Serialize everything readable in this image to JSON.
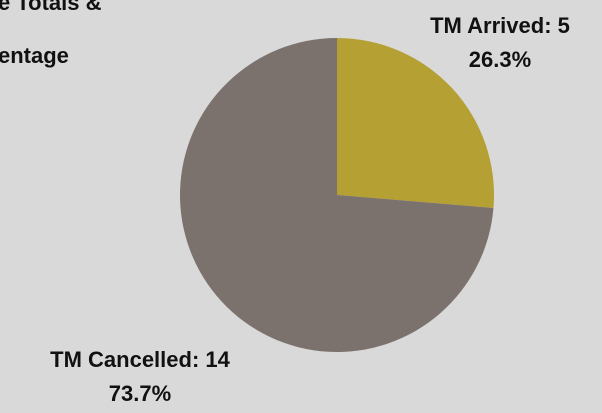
{
  "chart_data": {
    "type": "pie",
    "title_lines": [
      "e Totals &",
      "entage"
    ],
    "value_labels": [
      "TM Arrived: 5",
      "TM Cancelled: 14"
    ],
    "values": [
      5,
      14
    ],
    "percentages": [
      26.3,
      73.7
    ],
    "percentage_labels": [
      "26.3%",
      "73.7%"
    ],
    "colors": [
      "#b5a033",
      "#7b716d"
    ]
  }
}
